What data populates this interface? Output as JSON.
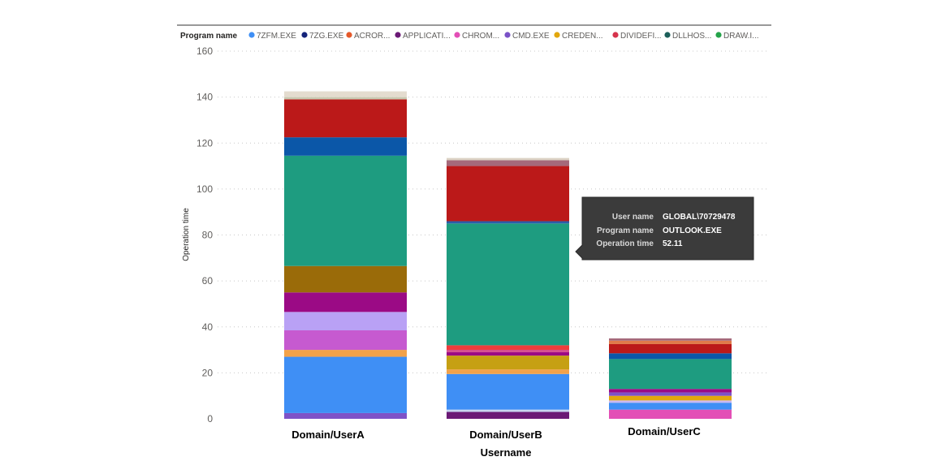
{
  "chart_data": {
    "type": "bar",
    "stacked": true,
    "title": "",
    "xlabel": "Username",
    "ylabel": "Operation time",
    "ylim": [
      0,
      160
    ],
    "yticks": [
      0,
      20,
      40,
      60,
      80,
      100,
      120,
      140,
      160
    ],
    "grid": true,
    "categories": [
      "Domain/UserA",
      "Domain/UserB",
      "Domain/UserC"
    ],
    "legend": {
      "title": "Program name",
      "position": "top-left",
      "entries": [
        {
          "label": "7ZFM.EXE",
          "color": "#3f8ff5"
        },
        {
          "label": "7ZG.EXE",
          "color": "#14237a"
        },
        {
          "label": "ACROR...",
          "color": "#e5592a"
        },
        {
          "label": "APPLICATI...",
          "color": "#6b1a76"
        },
        {
          "label": "CHROM...",
          "color": "#e34fb6"
        },
        {
          "label": "CMD.EXE",
          "color": "#7a52c7"
        },
        {
          "label": "CREDEN...",
          "color": "#e2a70d"
        },
        {
          "label": "DIVIDEFI...",
          "color": "#d6334c"
        },
        {
          "label": "DLLHOS...",
          "color": "#1c5f5a"
        },
        {
          "label": "DRAW.I...",
          "color": "#25a34a"
        }
      ]
    },
    "stacks": [
      [
        {
          "value": 2.5,
          "color": "#7e52c7"
        },
        {
          "value": 24.5,
          "color": "#3f8ff5"
        },
        {
          "value": 3,
          "color": "#f2a24a"
        },
        {
          "value": 8.5,
          "color": "#c65ad0"
        },
        {
          "value": 8,
          "color": "#b9a1f5"
        },
        {
          "value": 8.5,
          "color": "#9b0a85"
        },
        {
          "value": 11.5,
          "color": "#9a6b09"
        },
        {
          "value": 48,
          "color": "#1e9c80"
        },
        {
          "value": 8,
          "color": "#0b57a8"
        },
        {
          "value": 16.5,
          "color": "#bb1919"
        },
        {
          "value": 1,
          "color": "#c8c8b0"
        },
        {
          "value": 2.5,
          "color": "#e4dccf"
        }
      ],
      [
        {
          "value": 3,
          "color": "#6b1a76"
        },
        {
          "value": 1,
          "color": "#c8d6f0"
        },
        {
          "value": 15.5,
          "color": "#3f8ff5"
        },
        {
          "value": 2,
          "color": "#f2a24a"
        },
        {
          "value": 6,
          "color": "#c6a013"
        },
        {
          "value": 1.5,
          "color": "#9b0a85"
        },
        {
          "value": 1,
          "color": "#d44a8e"
        },
        {
          "value": 2,
          "color": "#ef3c3c"
        },
        {
          "value": 53,
          "color": "#1e9c80"
        },
        {
          "value": 1,
          "color": "#2b5ea8"
        },
        {
          "value": 24,
          "color": "#bb1919"
        },
        {
          "value": 2.5,
          "color": "#a5697a"
        },
        {
          "value": 1,
          "color": "#dcd2c4"
        }
      ],
      [
        {
          "value": 4,
          "color": "#e34fb6"
        },
        {
          "value": 3,
          "color": "#3f8ff5"
        },
        {
          "value": 1,
          "color": "#c9b8f2"
        },
        {
          "value": 2,
          "color": "#e2a70d"
        },
        {
          "value": 1.5,
          "color": "#7e52c7"
        },
        {
          "value": 1.5,
          "color": "#9b0a85"
        },
        {
          "value": 13,
          "color": "#1e9c80"
        },
        {
          "value": 2.5,
          "color": "#0b57a8"
        },
        {
          "value": 4,
          "color": "#bb1919"
        },
        {
          "value": 1.5,
          "color": "#e07a4a"
        },
        {
          "value": 1,
          "color": "#a5697a"
        }
      ]
    ],
    "tooltip": {
      "rows": [
        {
          "key": "User name",
          "value": "GLOBAL\\70729478"
        },
        {
          "key": "Program name",
          "value": "OUTLOOK.EXE"
        },
        {
          "key": "Operation time",
          "value": "52.11"
        }
      ]
    }
  }
}
